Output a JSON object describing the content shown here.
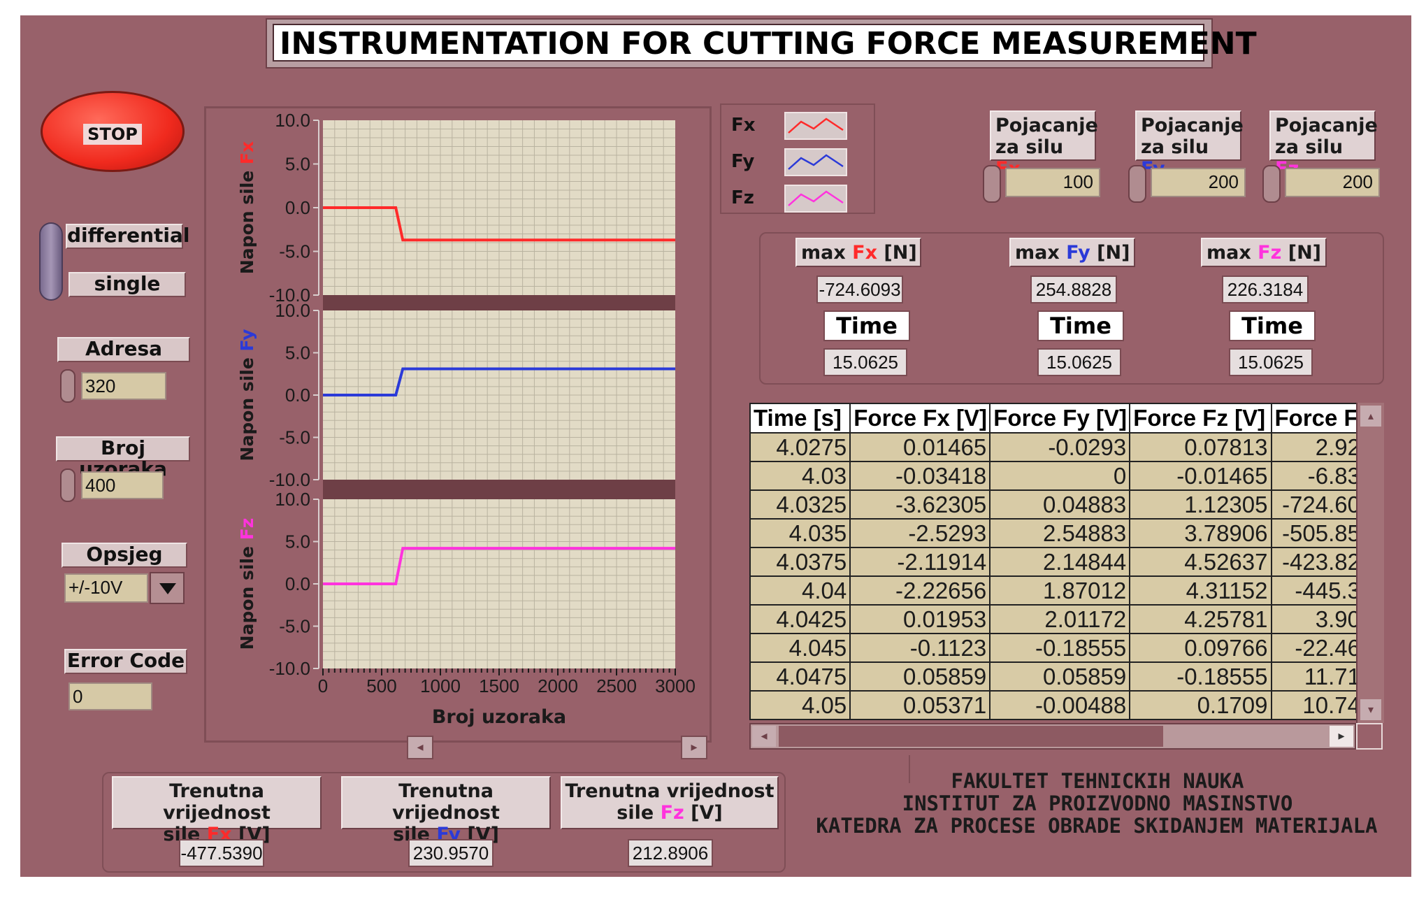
{
  "title": "INSTRUMENTATION FOR CUTTING FORCE MEASUREMENT",
  "stop_button": "STOP",
  "mode": {
    "differential": "differential",
    "single": "single"
  },
  "adresa": {
    "label": "Adresa",
    "value": "320"
  },
  "broj_uzoraka": {
    "label": "Broj uzoraka",
    "value": "400"
  },
  "opsjeg": {
    "label": "Opsjeg",
    "value": "+/-10V"
  },
  "error_code": {
    "label": "Error Code",
    "value": "0"
  },
  "legend": [
    {
      "name": "Fx",
      "color": "#ff2a2a"
    },
    {
      "name": "Fy",
      "color": "#2b3ad8"
    },
    {
      "name": "Fz",
      "color": "#ff33dd"
    }
  ],
  "gains": [
    {
      "line1": "Pojacanje",
      "line2_prefix": "za silu ",
      "force": "Fx",
      "value": "100"
    },
    {
      "line1": "Pojacanje",
      "line2_prefix": "za silu ",
      "force": "Fy",
      "value": "200"
    },
    {
      "line1": "Pojacanje",
      "line2_prefix": "za silu ",
      "force": "Fz",
      "value": "200"
    }
  ],
  "max": [
    {
      "prefix": "max ",
      "force": "Fx",
      "suffix": " [N]",
      "value": "-724.6093",
      "time_label": "Time",
      "time_value": "15.0625"
    },
    {
      "prefix": "max ",
      "force": "Fy",
      "suffix": " [N]",
      "value": "254.8828",
      "time_label": "Time",
      "time_value": "15.0625"
    },
    {
      "prefix": "max ",
      "force": "Fz",
      "suffix": " [N]",
      "value": "226.3184",
      "time_label": "Time",
      "time_value": "15.0625"
    }
  ],
  "table": {
    "headers": [
      "Time [s]",
      "Force Fx [V]",
      "Force Fy [V]",
      "Force Fz [V]",
      "Force F"
    ],
    "rows": [
      [
        "4.0275",
        "0.01465",
        "-0.0293",
        "0.07813",
        "2.92"
      ],
      [
        "4.03",
        "-0.03418",
        "0",
        "-0.01465",
        "-6.83"
      ],
      [
        "4.0325",
        "-3.62305",
        "0.04883",
        "1.12305",
        "-724.60"
      ],
      [
        "4.035",
        "-2.5293",
        "2.54883",
        "3.78906",
        "-505.85"
      ],
      [
        "4.0375",
        "-2.11914",
        "2.14844",
        "4.52637",
        "-423.82"
      ],
      [
        "4.04",
        "-2.22656",
        "1.87012",
        "4.31152",
        "-445.3"
      ],
      [
        "4.0425",
        "0.01953",
        "2.01172",
        "4.25781",
        "3.90"
      ],
      [
        "4.045",
        "-0.1123",
        "-0.18555",
        "0.09766",
        "-22.46"
      ],
      [
        "4.0475",
        "0.05859",
        "0.05859",
        "-0.18555",
        "11.71"
      ],
      [
        "4.05",
        "0.05371",
        "-0.00488",
        "0.1709",
        "10.74"
      ]
    ]
  },
  "current_values": [
    {
      "line1": "Trenutna vrijednost",
      "line2_prefix": "sile ",
      "force": "Fx",
      "suffix": " [V]",
      "value": "-477.5390"
    },
    {
      "line1": "Trenutna vrijednost",
      "line2_prefix": "sile ",
      "force": "Fy",
      "suffix": " [V]",
      "value": "230.9570"
    },
    {
      "line1": "Trenutna vrijednost",
      "line2_prefix": "sile ",
      "force": "Fz",
      "suffix": " [V]",
      "value": "212.8906"
    }
  ],
  "footer": [
    "FAKULTET TEHNICKIH NAUKA",
    "INSTITUT ZA PROIZVODNO MASINSTVO",
    "KATEDRA ZA PROCESE OBRADE SKIDANJEM MATERIJALA"
  ],
  "chart_data": [
    {
      "type": "line",
      "ylabel_prefix": "Napon sile ",
      "ylabel_force": "Fx",
      "ylim": [
        -10,
        10
      ],
      "yticks": [
        "10.0",
        "5.0",
        "0.0",
        "-5.0",
        "-10.0"
      ],
      "color": "#ff2a2a",
      "x": [
        0,
        620,
        680,
        3000
      ],
      "y": [
        0,
        0,
        -3.7,
        -3.7
      ]
    },
    {
      "type": "line",
      "ylabel_prefix": "Napon sile ",
      "ylabel_force": "Fy",
      "ylim": [
        -10,
        10
      ],
      "yticks": [
        "10.0",
        "5.0",
        "0.0",
        "-5.0",
        "-10.0"
      ],
      "color": "#2b3ad8",
      "x": [
        0,
        620,
        680,
        3000
      ],
      "y": [
        0,
        0,
        3.1,
        3.1
      ]
    },
    {
      "type": "line",
      "ylabel_prefix": "Napon sile ",
      "ylabel_force": "Fz",
      "ylim": [
        -10,
        10
      ],
      "yticks": [
        "10.0",
        "5.0",
        "0.0",
        "-5.0",
        "-10.0"
      ],
      "color": "#ff33dd",
      "x": [
        0,
        620,
        680,
        3000
      ],
      "y": [
        0,
        0,
        4.2,
        4.2
      ],
      "xlabel": "Broj uzoraka",
      "xticks": [
        "0",
        "500",
        "1000",
        "1500",
        "2000",
        "2500",
        "3000"
      ],
      "xlim": [
        0,
        3000
      ]
    }
  ]
}
